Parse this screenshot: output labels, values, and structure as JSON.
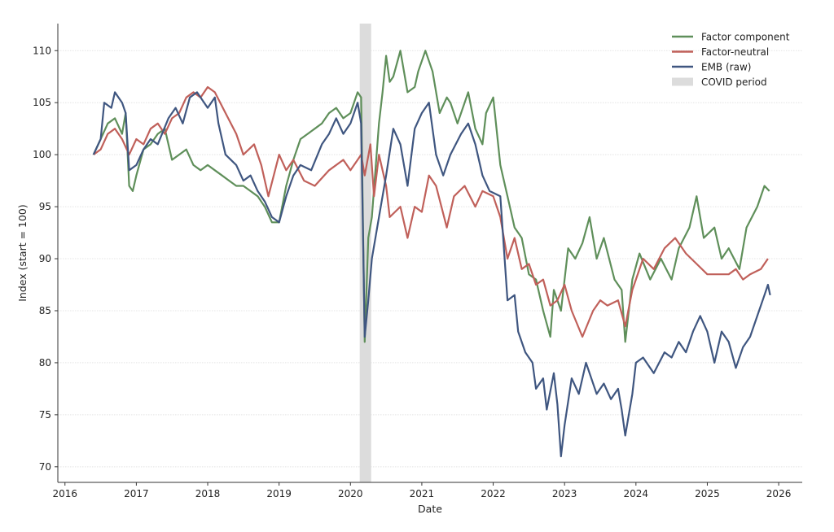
{
  "chart_data": {
    "type": "line",
    "title": "",
    "xlabel": "Date",
    "ylabel": "Index (start = 100)",
    "xlim": [
      2015.9,
      2026.33
    ],
    "ylim": [
      68.5,
      112.6
    ],
    "grid": "horizontal-dotted",
    "legend_position": "top-right",
    "x_ticks": [
      "2016",
      "2017",
      "2018",
      "2019",
      "2020",
      "2021",
      "2022",
      "2023",
      "2024",
      "2025",
      "2026"
    ],
    "y_ticks": [
      "70",
      "75",
      "80",
      "85",
      "90",
      "95",
      "100",
      "105",
      "110"
    ],
    "shaded_regions": [
      {
        "name": "COVID period",
        "start": 2020.13,
        "end": 2020.29,
        "color": "#dcdcdc"
      }
    ],
    "series": [
      {
        "name": "Factor component",
        "color": "#5f8f5a",
        "x": [
          2016.4,
          2016.5,
          2016.6,
          2016.7,
          2016.8,
          2016.85,
          2016.9,
          2016.95,
          2017.0,
          2017.1,
          2017.2,
          2017.3,
          2017.4,
          2017.5,
          2017.6,
          2017.7,
          2017.8,
          2017.9,
          2018.0,
          2018.1,
          2018.2,
          2018.3,
          2018.4,
          2018.5,
          2018.6,
          2018.7,
          2018.8,
          2018.9,
          2019.0,
          2019.1,
          2019.2,
          2019.3,
          2019.4,
          2019.5,
          2019.6,
          2019.7,
          2019.8,
          2019.9,
          2020.0,
          2020.1,
          2020.15,
          2020.2,
          2020.25,
          2020.3,
          2020.4,
          2020.45,
          2020.5,
          2020.55,
          2020.6,
          2020.7,
          2020.8,
          2020.9,
          2020.95,
          2021.05,
          2021.15,
          2021.25,
          2021.35,
          2021.4,
          2021.5,
          2021.6,
          2021.65,
          2021.75,
          2021.85,
          2021.9,
          2022.0,
          2022.1,
          2022.2,
          2022.3,
          2022.4,
          2022.5,
          2022.6,
          2022.7,
          2022.8,
          2022.85,
          2022.95,
          2023.05,
          2023.15,
          2023.25,
          2023.35,
          2023.45,
          2023.55,
          2023.7,
          2023.8,
          2023.85,
          2023.95,
          2024.05,
          2024.2,
          2024.35,
          2024.5,
          2024.6,
          2024.75,
          2024.85,
          2024.95,
          2025.1,
          2025.2,
          2025.3,
          2025.45,
          2025.55,
          2025.7,
          2025.8,
          2025.87
        ],
        "y": [
          100,
          101.5,
          103,
          103.5,
          102,
          104,
          97,
          96.5,
          98,
          100.5,
          101,
          102,
          102.5,
          99.5,
          100,
          100.5,
          99,
          98.5,
          99,
          98.5,
          98,
          97.5,
          97,
          97,
          96.5,
          96,
          95,
          93.5,
          93.5,
          97,
          99.5,
          101.5,
          102,
          102.5,
          103,
          104,
          104.5,
          103.5,
          104,
          106,
          105.5,
          82,
          92,
          94,
          103,
          106,
          109.5,
          107,
          107.5,
          110,
          106,
          106.5,
          108,
          110,
          108,
          104,
          105.5,
          105,
          103,
          105,
          106,
          102.5,
          101,
          104,
          105.5,
          99,
          96,
          93,
          92,
          88.5,
          88,
          85,
          82.5,
          87,
          85,
          91,
          90,
          91.5,
          94,
          90,
          92,
          88,
          87,
          82,
          88,
          90.5,
          88,
          90,
          88,
          91,
          93,
          96,
          92,
          93,
          90,
          91,
          89,
          93,
          95,
          97,
          96.5
        ]
      },
      {
        "name": "Factor-neutral",
        "color": "#c0605a",
        "x": [
          2016.4,
          2016.5,
          2016.6,
          2016.7,
          2016.8,
          2016.9,
          2017.0,
          2017.1,
          2017.2,
          2017.3,
          2017.4,
          2017.5,
          2017.6,
          2017.7,
          2017.8,
          2017.9,
          2018.0,
          2018.1,
          2018.25,
          2018.4,
          2018.5,
          2018.65,
          2018.75,
          2018.85,
          2019.0,
          2019.1,
          2019.2,
          2019.35,
          2019.5,
          2019.7,
          2019.9,
          2020.0,
          2020.1,
          2020.15,
          2020.2,
          2020.28,
          2020.33,
          2020.4,
          2020.5,
          2020.55,
          2020.7,
          2020.8,
          2020.9,
          2021.0,
          2021.1,
          2021.2,
          2021.35,
          2021.45,
          2021.6,
          2021.75,
          2021.85,
          2022.0,
          2022.1,
          2022.2,
          2022.3,
          2022.4,
          2022.5,
          2022.6,
          2022.7,
          2022.8,
          2022.9,
          2023.0,
          2023.1,
          2023.25,
          2023.4,
          2023.5,
          2023.6,
          2023.75,
          2023.85,
          2023.95,
          2024.1,
          2024.25,
          2024.4,
          2024.55,
          2024.7,
          2024.85,
          2025.0,
          2025.15,
          2025.3,
          2025.4,
          2025.5,
          2025.6,
          2025.75,
          2025.85
        ],
        "y": [
          100,
          100.5,
          102,
          102.5,
          101.5,
          100,
          101.5,
          101,
          102.5,
          103,
          102,
          103.5,
          104,
          105.5,
          106,
          105.5,
          106.5,
          106,
          104,
          102,
          100,
          101,
          99,
          96,
          100,
          98.5,
          99.5,
          97.5,
          97,
          98.5,
          99.5,
          98.5,
          99.5,
          100,
          98,
          101,
          96,
          100,
          97,
          94,
          95,
          92,
          95,
          94.5,
          98,
          97,
          93,
          96,
          97,
          95,
          96.5,
          96,
          94,
          90,
          92,
          89,
          89.5,
          87.5,
          88,
          85.5,
          86,
          87.5,
          85,
          82.5,
          85,
          86,
          85.5,
          86,
          83.5,
          87,
          90,
          89,
          91,
          92,
          90.5,
          89.5,
          88.5,
          88.5,
          88.5,
          89,
          88,
          88.5,
          89,
          90
        ]
      },
      {
        "name": "EMB (raw)",
        "color": "#3f5680",
        "x": [
          2016.4,
          2016.5,
          2016.55,
          2016.65,
          2016.7,
          2016.8,
          2016.85,
          2016.9,
          2017.0,
          2017.1,
          2017.2,
          2017.3,
          2017.45,
          2017.55,
          2017.65,
          2017.75,
          2017.85,
          2018.0,
          2018.1,
          2018.15,
          2018.25,
          2018.4,
          2018.5,
          2018.6,
          2018.7,
          2018.8,
          2018.9,
          2019.0,
          2019.1,
          2019.2,
          2019.3,
          2019.45,
          2019.6,
          2019.7,
          2019.8,
          2019.9,
          2020.0,
          2020.1,
          2020.15,
          2020.2,
          2020.25,
          2020.3,
          2020.4,
          2020.5,
          2020.6,
          2020.7,
          2020.8,
          2020.9,
          2021.0,
          2021.1,
          2021.2,
          2021.3,
          2021.4,
          2021.55,
          2021.65,
          2021.75,
          2021.85,
          2021.95,
          2022.1,
          2022.15,
          2022.2,
          2022.3,
          2022.35,
          2022.45,
          2022.55,
          2022.6,
          2022.7,
          2022.75,
          2022.85,
          2022.9,
          2022.95,
          2023.0,
          2023.1,
          2023.2,
          2023.3,
          2023.45,
          2023.55,
          2023.65,
          2023.75,
          2023.8,
          2023.85,
          2023.95,
          2024.0,
          2024.1,
          2024.25,
          2024.4,
          2024.5,
          2024.6,
          2024.7,
          2024.8,
          2024.9,
          2025.0,
          2025.1,
          2025.2,
          2025.3,
          2025.4,
          2025.5,
          2025.6,
          2025.7,
          2025.8,
          2025.85,
          2025.88
        ],
        "y": [
          100,
          101.5,
          105,
          104.5,
          106,
          105,
          104,
          98.5,
          99,
          100.5,
          101.5,
          101,
          103.5,
          104.5,
          103,
          105.5,
          106,
          104.5,
          105.5,
          103,
          100,
          99,
          97.5,
          98,
          96.5,
          95.5,
          94,
          93.5,
          96,
          98,
          99,
          98.5,
          101,
          102,
          103.5,
          102,
          103,
          105,
          103,
          82.5,
          86,
          90,
          94,
          98,
          102.5,
          101,
          97,
          102.5,
          104,
          105,
          100,
          98,
          100,
          102,
          103,
          101,
          98,
          96.5,
          96,
          91,
          86,
          86.5,
          83,
          81,
          80,
          77.5,
          78.5,
          75.5,
          79,
          76,
          71,
          74,
          78.5,
          77,
          80,
          77,
          78,
          76.5,
          77.5,
          75.5,
          73,
          77,
          80,
          80.5,
          79,
          81,
          80.5,
          82,
          81,
          83,
          84.5,
          83,
          80,
          83,
          82,
          79.5,
          81.5,
          82.5,
          84.5,
          86.5,
          87.5,
          86.5
        ]
      }
    ]
  }
}
